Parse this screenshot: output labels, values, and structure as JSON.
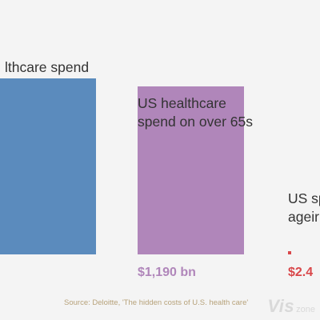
{
  "chart_data": {
    "type": "bar",
    "title": "",
    "xlabel": "",
    "ylabel": "",
    "categories": [
      "healthcare spend",
      "US healthcare spend on over 65s",
      "US sp ageir"
    ],
    "label_lines": [
      [
        "lthcare spend"
      ],
      [
        "US healthcare",
        "spend on over 65s"
      ],
      [
        "US sp",
        "ageir"
      ]
    ],
    "values": [
      null,
      1190,
      2.4
    ],
    "value_labels": [
      "",
      "$1,190 bn",
      "$2.4"
    ],
    "colors": [
      "#5b8bbd",
      "#b086ba",
      "#d9474a"
    ],
    "ylim": [
      0,
      1700
    ],
    "grid": false,
    "legend": "none"
  },
  "source": "Source: Deloitte, 'The hidden costs of U.S. health care'",
  "watermark": {
    "main": "Vis",
    "sub": "zone"
  }
}
